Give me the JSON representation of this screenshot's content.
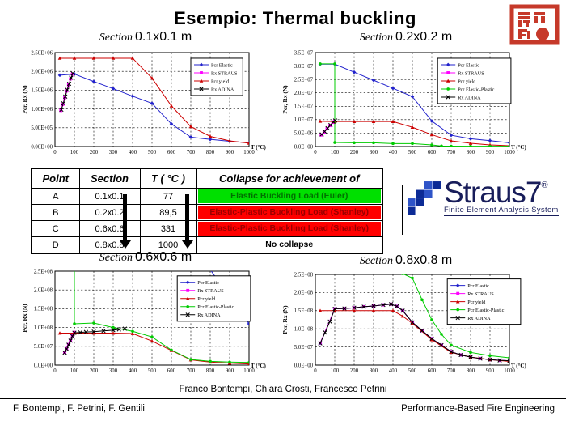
{
  "title": "Esempio: Thermal buckling",
  "stamp": {
    "icon": "chinese-seal-icon",
    "color": "#c6392a"
  },
  "logo": {
    "name": "Straus7",
    "registered": "®",
    "tagline": "Finite Element Analysis System",
    "color": "#181d5a",
    "icon": "straus7-grid-icon",
    "square_colors": [
      "#2e54c8",
      "#0c2b96"
    ]
  },
  "table": {
    "headers": [
      "Point",
      "Section",
      "T ( °C )",
      "Collapse for achievement of"
    ],
    "rows": [
      {
        "point": "A",
        "section": "0.1x0.1",
        "temp": "77",
        "collapse": "Elastic Buckling Load (Euler)",
        "bg": "#00e000",
        "fg": "#007000"
      },
      {
        "point": "B",
        "section": "0.2x0.2",
        "temp": "89,5",
        "collapse": "Elastic-Plastic Buckling Load (Shanley)",
        "bg": "#ff0000",
        "fg": "#990000"
      },
      {
        "point": "C",
        "section": "0.6x0.6",
        "temp": "331",
        "collapse": "Elastic-Plastic Buckling Load (Shanley)",
        "bg": "#ff0000",
        "fg": "#990000"
      },
      {
        "point": "D",
        "section": "0.8x0.8",
        "temp": "1000",
        "collapse": "No collapse",
        "bg": "#ffffff",
        "fg": "#000000"
      }
    ]
  },
  "footer": {
    "authors_center": "Franco Bontempi, Chiara Crosti, Francesco Petrini",
    "authors_left": "F. Bontempi, F. Petrini, F. Gentili",
    "right": "Performance-Based Fire Engineering"
  },
  "chart_data": [
    {
      "type": "line",
      "title_prefix": "Section",
      "title_size": "0.1x0.1 m",
      "xlabel": "T (°C)",
      "ylabel": "Pcr, Rx (N)",
      "xlim": [
        0,
        1000
      ],
      "ylim": [
        0,
        2500000
      ],
      "xticks": [
        0,
        100,
        200,
        300,
        400,
        500,
        600,
        700,
        800,
        900,
        1000
      ],
      "yticks": [
        "0.00E+00",
        "5.00E+05",
        "1.00E+06",
        "1.50E+06",
        "2.00E+06",
        "2.50E+06"
      ],
      "grid": true,
      "legend": {
        "x": 0.7,
        "y": 0.06
      },
      "series": [
        {
          "name": "Pcr Elastic",
          "color": "#2222cc",
          "marker": "diamond",
          "x": [
            25,
            100,
            200,
            300,
            400,
            500,
            600,
            700,
            800,
            900,
            1000
          ],
          "y": [
            1900000.0,
            1930000.0,
            1730000.0,
            1540000.0,
            1340000.0,
            1150000.0,
            600000.0,
            250000.0,
            190000.0,
            140000.0,
            100000.0
          ]
        },
        {
          "name": "Rx STRAUS",
          "color": "#ff00ff",
          "marker": "square",
          "x": [
            30,
            40,
            50,
            60,
            70,
            80,
            90
          ],
          "y": [
            960000.0,
            1120000.0,
            1300000.0,
            1480000.0,
            1640000.0,
            1800000.0,
            1930000.0
          ]
        },
        {
          "name": "Pcr yield",
          "color": "#cc0000",
          "marker": "triangle",
          "x": [
            25,
            100,
            200,
            300,
            400,
            500,
            600,
            700,
            800,
            900,
            1000
          ],
          "y": [
            2350000.0,
            2350000.0,
            2350000.0,
            2350000.0,
            2350000.0,
            1820000.0,
            1080000.0,
            530000.0,
            270000.0,
            150000.0,
            90000.0
          ]
        },
        {
          "name": "Rx ADINA",
          "color": "#000000",
          "marker": "x",
          "x": [
            33,
            43,
            53,
            63,
            73,
            83,
            92
          ],
          "y": [
            980000.0,
            1150000.0,
            1330000.0,
            1510000.0,
            1670000.0,
            1830000.0,
            1950000.0
          ]
        }
      ]
    },
    {
      "type": "line",
      "title_prefix": "Section",
      "title_size": "0.2x0.2 m",
      "xlabel": "T (°C)",
      "ylabel": "Pcr, Rx (N)",
      "xlim": [
        0,
        1000
      ],
      "ylim": [
        0,
        35000000
      ],
      "xticks": [
        0,
        100,
        200,
        300,
        400,
        500,
        600,
        700,
        800,
        900,
        1000
      ],
      "yticks": [
        "0.0E+00",
        "5.0E+06",
        "1.0E+07",
        "1.5E+07",
        "2.0E+07",
        "2.5E+07",
        "3.0E+07",
        "3.5E+07"
      ],
      "grid": true,
      "legend": {
        "x": 0.63,
        "y": 0.06
      },
      "series": [
        {
          "name": "Pcr Elastic",
          "color": "#2222cc",
          "marker": "diamond",
          "x": [
            25,
            100,
            200,
            300,
            400,
            500,
            600,
            700,
            800,
            900,
            1000
          ],
          "y": [
            30700000.0,
            30700000.0,
            27700000.0,
            24700000.0,
            21700000.0,
            18600000.0,
            9500000.0,
            4200000.0,
            2900000.0,
            2200000.0,
            1400000.0
          ]
        },
        {
          "name": "Rx STRAUS",
          "color": "#ff00ff",
          "marker": "square",
          "x": [
            30,
            45,
            60,
            75,
            90,
            100
          ],
          "y": [
            4300000.0,
            5400000.0,
            6600000.0,
            7800000.0,
            9000000.0,
            9600000.0
          ]
        },
        {
          "name": "Pcr yield",
          "color": "#cc0000",
          "marker": "triangle",
          "x": [
            25,
            100,
            200,
            300,
            400,
            500,
            600,
            700,
            800,
            900,
            1000
          ],
          "y": [
            9400000.0,
            9300000.0,
            9300000.0,
            9300000.0,
            9300000.0,
            7200000.0,
            4400000.0,
            2100000.0,
            1200000.0,
            600000.0,
            300000.0
          ]
        },
        {
          "name": "Pcr Elastic-Plastic",
          "color": "#00cc00",
          "marker": "circle",
          "x": [
            25,
            100,
            100,
            200,
            300,
            400,
            500,
            600,
            650,
            700,
            800,
            900,
            1000
          ],
          "y": [
            30800000.0,
            30800000.0,
            1500000.0,
            1400000.0,
            1400000.0,
            1100000.0,
            1100000.0,
            600000.0,
            200000.0,
            150000.0,
            100000.0,
            100000.0,
            100000.0
          ]
        },
        {
          "name": "Rx ADINA",
          "color": "#000000",
          "marker": "x",
          "x": [
            33,
            48,
            63,
            78,
            93,
            102
          ],
          "y": [
            4500000.0,
            5600000.0,
            6800000.0,
            8000000.0,
            9200000.0,
            9700000.0
          ]
        }
      ]
    },
    {
      "type": "line",
      "title_prefix": "Section",
      "title_size": "0.6x0.6 m",
      "xlabel": "T (°C)",
      "ylabel": "Pcr, Rx (N)",
      "xlim": [
        0,
        1000
      ],
      "ylim": [
        0,
        250000000
      ],
      "xticks": [
        0,
        100,
        200,
        300,
        400,
        500,
        600,
        700,
        800,
        900,
        1000
      ],
      "yticks": [
        "0.0E+00",
        "5.0E+07",
        "1.0E+08",
        "1.5E+08",
        "2.0E+08",
        "2.5E+08"
      ],
      "grid": true,
      "legend": {
        "x": 0.63,
        "y": 0.05
      },
      "series": [
        {
          "name": "Pcr Elastic",
          "color": "#2222cc",
          "marker": "diamond",
          "x": [
            750,
            1000
          ],
          "y": [
            290000000.0,
            110000000.0
          ]
        },
        {
          "name": "Rx STRAUS",
          "color": "#ff00ff",
          "marker": "square",
          "x": [
            50,
            60,
            70,
            80,
            90,
            100
          ],
          "y": [
            34000000.0,
            44000000.0,
            55000000.0,
            66000000.0,
            78000000.0,
            87000000.0
          ]
        },
        {
          "name": "Pcr yield",
          "color": "#cc0000",
          "marker": "triangle",
          "x": [
            25,
            100,
            200,
            300,
            400,
            500,
            600,
            700,
            800,
            900,
            1000
          ],
          "y": [
            85000000.0,
            85000000.0,
            85000000.0,
            85000000.0,
            84000000.0,
            64000000.0,
            39000000.0,
            14000000.0,
            8000000.0,
            5000000.0,
            3000000.0
          ]
        },
        {
          "name": "Pcr Elastic-Plastic",
          "color": "#00cc00",
          "marker": "circle",
          "x": [
            100,
            100,
            200,
            300,
            400,
            500,
            600,
            700,
            800,
            900,
            1000
          ],
          "y": [
            290000000.0,
            110000000.0,
            112000000.0,
            100000000.0,
            90000000.0,
            75000000.0,
            40000000.0,
            15000000.0,
            10000000.0,
            8000000.0,
            7000000.0
          ]
        },
        {
          "name": "Rx ADINA",
          "color": "#000000",
          "marker": "x",
          "x": [
            50,
            60,
            70,
            80,
            90,
            100,
            130,
            160,
            200,
            250,
            300,
            330,
            360
          ],
          "y": [
            33000000.0,
            43000000.0,
            54000000.0,
            65000000.0,
            77000000.0,
            86000000.0,
            87000000.0,
            88000000.0,
            89000000.0,
            91000000.0,
            93000000.0,
            95000000.0,
            97000000.0
          ]
        }
      ]
    },
    {
      "type": "line",
      "title_prefix": "Section",
      "title_size": "0.8x0.8 m",
      "xlabel": "T (°C)",
      "ylabel": "Pcr, Rx (N)",
      "xlim": [
        0,
        1000
      ],
      "ylim": [
        0,
        250000000
      ],
      "xticks": [
        0,
        100,
        200,
        300,
        400,
        500,
        600,
        700,
        800,
        900,
        1000
      ],
      "yticks": [
        "0.0E+00",
        "5.0E+07",
        "1.0E+08",
        "1.5E+08",
        "2.0E+08",
        "2.5E+08"
      ],
      "grid": true,
      "legend": {
        "x": 0.68,
        "y": 0.05
      },
      "series": [
        {
          "name": "Pcr Elastic",
          "color": "#2222cc",
          "marker": "diamond",
          "x": [
            25,
            100,
            150,
            200,
            250,
            300,
            350,
            390,
            420,
            450,
            500,
            550,
            600,
            650,
            700,
            750,
            800,
            850,
            900,
            950,
            1000
          ],
          "y": [
            60000000.0,
            155000000.0,
            156000000.0,
            158000000.0,
            161000000.0,
            163000000.0,
            166000000.0,
            168000000.0,
            162000000.0,
            150000000.0,
            118000000.0,
            95000000.0,
            73000000.0,
            55000000.0,
            37000000.0,
            28000000.0,
            22000000.0,
            18000000.0,
            15000000.0,
            13000000.0,
            12000000.0
          ]
        },
        {
          "name": "Rx STRAUS",
          "color": "#ff00ff",
          "marker": "square",
          "x": [
            25,
            100,
            150,
            200,
            250,
            300,
            350,
            390,
            420,
            450,
            500,
            550,
            600,
            650,
            700,
            750,
            800,
            850,
            900,
            950,
            1000
          ],
          "y": [
            61000000.0,
            155000000.0,
            156000000.0,
            158000000.0,
            161000000.0,
            163000000.0,
            166000000.0,
            168000000.0,
            162000000.0,
            150000000.0,
            118000000.0,
            95000000.0,
            73000000.0,
            55000000.0,
            37000000.0,
            28000000.0,
            22000000.0,
            18000000.0,
            15000000.0,
            13000000.0,
            12000000.0
          ]
        },
        {
          "name": "Pcr yield",
          "color": "#cc0000",
          "marker": "triangle",
          "x": [
            25,
            100,
            200,
            300,
            400,
            450,
            500,
            600,
            700,
            800,
            900,
            1000
          ],
          "y": [
            150000000.0,
            150000000.0,
            150000000.0,
            150000000.0,
            150000000.0,
            135000000.0,
            115000000.0,
            70000000.0,
            35000000.0,
            22000000.0,
            15000000.0,
            10000000.0
          ]
        },
        {
          "name": "Pcr Elastic-Plastic",
          "color": "#00cc00",
          "marker": "circle",
          "x": [
            450,
            500,
            550,
            600,
            650,
            700,
            800,
            900,
            1000
          ],
          "y": [
            252000000.0,
            240000000.0,
            180000000.0,
            125000000.0,
            85000000.0,
            55000000.0,
            35000000.0,
            26000000.0,
            20000000.0
          ]
        },
        {
          "name": "Rx ADINA",
          "color": "#000000",
          "marker": "x",
          "x": [
            25,
            50,
            75,
            100,
            150,
            200,
            250,
            300,
            350,
            390,
            420,
            450,
            500,
            550,
            600,
            650,
            700,
            750,
            800,
            850,
            900,
            950,
            1000
          ],
          "y": [
            60000000.0,
            90000000.0,
            120000000.0,
            155000000.0,
            156000000.0,
            158000000.0,
            161000000.0,
            163000000.0,
            166000000.0,
            168000000.0,
            162000000.0,
            150000000.0,
            118000000.0,
            95000000.0,
            73000000.0,
            55000000.0,
            37000000.0,
            28000000.0,
            22000000.0,
            18000000.0,
            15000000.0,
            13000000.0,
            12000000.0
          ]
        }
      ]
    }
  ]
}
